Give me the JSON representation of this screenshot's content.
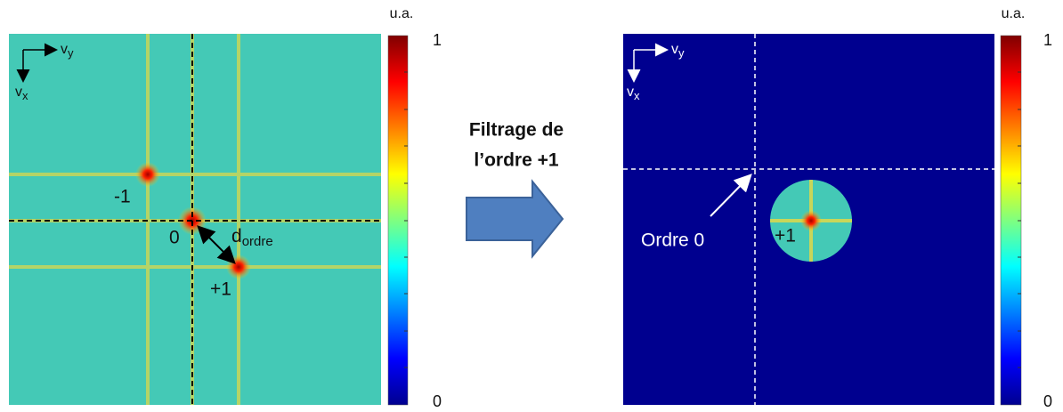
{
  "left_panel": {
    "axis_y": {
      "base": "v",
      "sub": "y"
    },
    "axis_x": {
      "base": "v",
      "sub": "x"
    },
    "order_minus": "-1",
    "order_zero": "0",
    "order_plus": "+1",
    "distance": {
      "base": "d",
      "sub": "ordre"
    }
  },
  "left_colorbar": {
    "unit": "u.a.",
    "max": 1,
    "min": 0
  },
  "step": {
    "line1": "Filtrage de",
    "line2": "l’ordre +1"
  },
  "right_panel": {
    "axis_y": {
      "base": "v",
      "sub": "y"
    },
    "axis_x": {
      "base": "v",
      "sub": "x"
    },
    "order_zero": "Ordre 0",
    "order_plus": "+1"
  },
  "right_colorbar": {
    "unit": "u.a.",
    "max": 1,
    "min": 0
  }
}
